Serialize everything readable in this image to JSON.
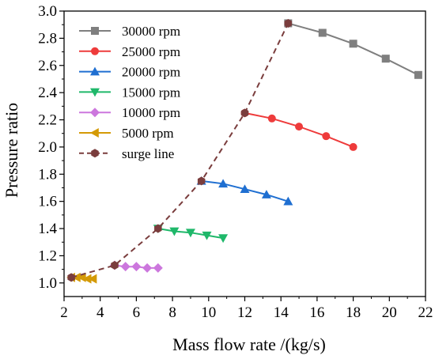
{
  "chart_data": {
    "type": "line",
    "title": "",
    "xlabel": "Mass flow rate /(kg/s)",
    "ylabel": "Pressure ratio",
    "xlim": [
      2,
      22
    ],
    "ylim": [
      0.9,
      3.0
    ],
    "xticks": [
      "2",
      "4",
      "6",
      "8",
      "10",
      "12",
      "14",
      "16",
      "18",
      "20",
      "22"
    ],
    "yticks": [
      "1.0",
      "1.2",
      "1.4",
      "1.6",
      "1.8",
      "2.0",
      "2.2",
      "2.4",
      "2.6",
      "2.8",
      "3.0"
    ],
    "grid": false,
    "legend_position": "top-left",
    "series": [
      {
        "name": "30000 rpm",
        "color": "#7f7f7f",
        "marker": "square",
        "dash": false,
        "x": [
          14.4,
          16.3,
          18.0,
          19.8,
          21.6
        ],
        "y": [
          2.91,
          2.84,
          2.76,
          2.65,
          2.53
        ]
      },
      {
        "name": "25000 rpm",
        "color": "#ee3b3b",
        "marker": "circle",
        "dash": false,
        "x": [
          12.0,
          13.5,
          15.0,
          16.5,
          18.0
        ],
        "y": [
          2.25,
          2.21,
          2.15,
          2.08,
          2.0
        ]
      },
      {
        "name": "20000 rpm",
        "color": "#1f6fd1",
        "marker": "triangle-up",
        "dash": false,
        "x": [
          9.6,
          10.8,
          12.0,
          13.2,
          14.4
        ],
        "y": [
          1.75,
          1.73,
          1.69,
          1.65,
          1.6
        ]
      },
      {
        "name": "15000 rpm",
        "color": "#1fb86a",
        "marker": "triangle-down",
        "dash": false,
        "x": [
          7.2,
          8.1,
          9.0,
          9.9,
          10.8
        ],
        "y": [
          1.4,
          1.38,
          1.37,
          1.35,
          1.33
        ]
      },
      {
        "name": "10000 rpm",
        "color": "#cc77dd",
        "marker": "diamond",
        "dash": false,
        "x": [
          4.8,
          5.4,
          6.0,
          6.6,
          7.2
        ],
        "y": [
          1.13,
          1.12,
          1.12,
          1.11,
          1.11
        ]
      },
      {
        "name": "5000 rpm",
        "color": "#d49a06",
        "marker": "triangle-left",
        "dash": false,
        "x": [
          2.4,
          2.7,
          3.0,
          3.3,
          3.6
        ],
        "y": [
          1.04,
          1.04,
          1.04,
          1.03,
          1.03
        ]
      },
      {
        "name": "surge line",
        "color": "#7a3d3d",
        "marker": "hexagon",
        "dash": true,
        "x": [
          2.4,
          4.8,
          7.2,
          9.6,
          12.0,
          14.4
        ],
        "y": [
          1.04,
          1.13,
          1.4,
          1.75,
          2.25,
          2.91
        ]
      }
    ]
  }
}
